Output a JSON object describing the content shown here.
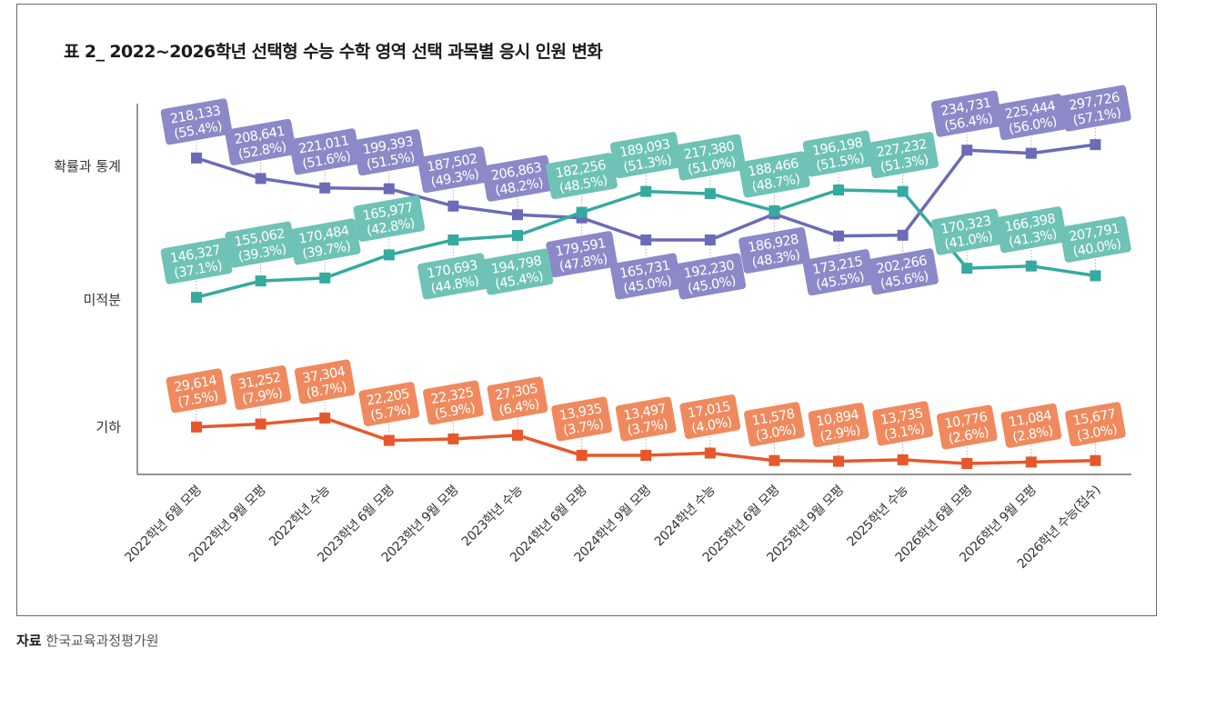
{
  "title": "표 2_ 2022~2026학년 선택형 수능 수학 영역 선택 과목별 응시 인원 변화",
  "source": {
    "label": "자료",
    "text": "한국교육과정평가원"
  },
  "chart_data": {
    "type": "line",
    "title": "표 2_ 2022~2026학년 선택형 수능 수학 영역 선택 과목별 응시 인원 변화",
    "xlabel": "",
    "ylabel": "",
    "grid": false,
    "legend": "none (series named on y-axis: 확률과 통계 top, 미적분 middle, 기하 bottom)",
    "y_axis_labels": [
      "확률과 통계",
      "미적분",
      "기하"
    ],
    "categories": [
      "2022학년 6월 모평",
      "2022학년 9월 모평",
      "2022학년 수능",
      "2023학년 6월 모평",
      "2023학년 9월 모평",
      "2023학년 수능",
      "2024학년 6월 모평",
      "2024학년 9월 모평",
      "2024학년 수능",
      "2025학년 6월 모평",
      "2025학년 9월 모평",
      "2025학년 수능",
      "2026학년 6월 모평",
      "2026학년 9월 모평",
      "2026학년 수능(접수)"
    ],
    "series": [
      {
        "name": "확률과 통계",
        "color": "#6b6bb8",
        "label_color": "#8c89c8",
        "values": [
          218133,
          208641,
          221011,
          199393,
          187502,
          206863,
          179591,
          165731,
          192230,
          186928,
          173215,
          202266,
          234731,
          225444,
          297726
        ],
        "shares": [
          55.4,
          52.8,
          51.6,
          51.5,
          49.3,
          48.2,
          47.8,
          45.0,
          45.0,
          48.3,
          45.5,
          45.6,
          56.4,
          56.0,
          57.1
        ],
        "value_labels": [
          "218,133",
          "208,641",
          "221,011",
          "199,393",
          "187,502",
          "206,863",
          "179,591",
          "165,731",
          "192,230",
          "186,928",
          "173,215",
          "202,266",
          "234,731",
          "225,444",
          "297,726"
        ],
        "share_labels": [
          "(55.4%)",
          "(52.8%)",
          "(51.6%)",
          "(51.5%)",
          "(49.3%)",
          "(48.2%)",
          "(47.8%)",
          "(45.0%)",
          "(45.0%)",
          "(48.3%)",
          "(45.5%)",
          "(45.6%)",
          "(56.4%)",
          "(56.0%)",
          "(57.1%)"
        ],
        "label_side": [
          "above",
          "above",
          "above",
          "above",
          "above",
          "above",
          "below",
          "below",
          "below",
          "below",
          "below",
          "below",
          "above",
          "above",
          "above"
        ]
      },
      {
        "name": "미적분",
        "color": "#35aaa0",
        "label_color": "#6fc2b6",
        "values": [
          146327,
          155062,
          170484,
          165977,
          170693,
          194798,
          182256,
          189093,
          217380,
          188466,
          196198,
          227232,
          170323,
          166398,
          207791
        ],
        "shares": [
          37.1,
          39.3,
          39.7,
          42.8,
          44.8,
          45.4,
          48.5,
          51.3,
          51.0,
          48.7,
          51.5,
          51.3,
          41.0,
          41.3,
          40.0
        ],
        "value_labels": [
          "146,327",
          "155,062",
          "170,484",
          "165,977",
          "170,693",
          "194,798",
          "182,256",
          "189,093",
          "217,380",
          "188,466",
          "196,198",
          "227,232",
          "170,323",
          "166,398",
          "207,791"
        ],
        "share_labels": [
          "(37.1%)",
          "(39.3%)",
          "(39.7%)",
          "(42.8%)",
          "(44.8%)",
          "(45.4%)",
          "(48.5%)",
          "(51.3%)",
          "(51.0%)",
          "(48.7%)",
          "(51.5%)",
          "(51.3%)",
          "(41.0%)",
          "(41.3%)",
          "(40.0%)"
        ],
        "label_side": [
          "above",
          "above",
          "above",
          "above",
          "below",
          "below",
          "above",
          "above",
          "above",
          "above",
          "above",
          "above",
          "above",
          "above",
          "above"
        ]
      },
      {
        "name": "기하",
        "color": "#e8572c",
        "label_color": "#f08a5e",
        "values": [
          29614,
          31252,
          37304,
          22205,
          22325,
          27305,
          13935,
          13497,
          17015,
          11578,
          10894,
          13735,
          10776,
          11084,
          15677
        ],
        "shares": [
          7.5,
          7.9,
          8.7,
          5.7,
          5.9,
          6.4,
          3.7,
          3.7,
          4.0,
          3.0,
          2.9,
          3.1,
          2.6,
          2.8,
          3.0
        ],
        "value_labels": [
          "29,614",
          "31,252",
          "37,304",
          "22,205",
          "22,325",
          "27,305",
          "13,935",
          "13,497",
          "17,015",
          "11,578",
          "10,894",
          "13,735",
          "10,776",
          "11,084",
          "15,677"
        ],
        "share_labels": [
          "(7.5%)",
          "(7.9%)",
          "(8.7%)",
          "(5.7%)",
          "(5.9%)",
          "(6.4%)",
          "(3.7%)",
          "(3.7%)",
          "(4.0%)",
          "(3.0%)",
          "(2.9%)",
          "(3.1%)",
          "(2.6%)",
          "(2.8%)",
          "(3.0%)"
        ],
        "label_side": [
          "above",
          "above",
          "above",
          "above",
          "above",
          "above",
          "above",
          "above",
          "above",
          "above",
          "above",
          "above",
          "above",
          "above",
          "above"
        ]
      }
    ]
  }
}
